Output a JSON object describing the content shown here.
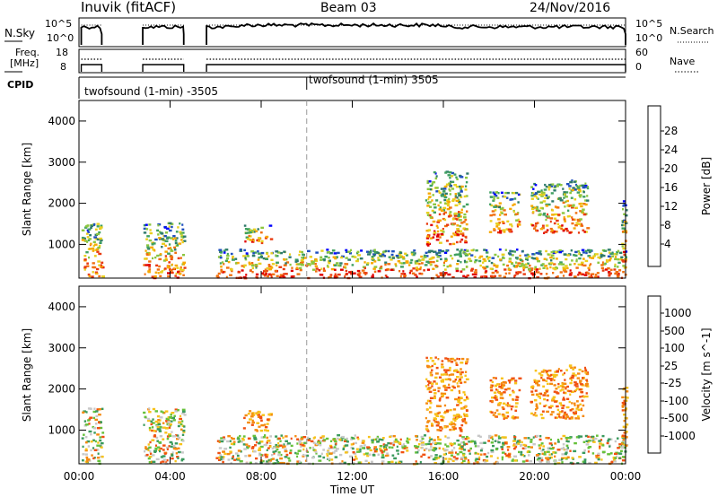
{
  "header": {
    "title": "Inuvik (fitACF)",
    "beam": "Beam 03",
    "date": "24/Nov/2016"
  },
  "top_panels": {
    "nsky_label": "N.Sky",
    "nsky_ticks": [
      "10^5",
      "10^0"
    ],
    "nsearch_label": "N.Search",
    "freq_label_line1": "Freq.",
    "freq_label_line2": "[MHz]",
    "freq_ticks": [
      "18",
      "8"
    ],
    "nave_label": "Nave",
    "nave_ticks": [
      "60",
      "0"
    ],
    "cpid_label": "CPID",
    "cpid_segments": [
      {
        "label": "twofsound (1-min) -3505",
        "start_hour": 0
      },
      {
        "label": "twofsound (1-min) 3505",
        "start_hour": 10
      }
    ]
  },
  "chart_data": [
    {
      "type": "heatmap",
      "name": "power",
      "ylabel": "Slant Range [km]",
      "xlabel": "Time UT",
      "x_ticks": [
        "00:00",
        "04:00",
        "08:00",
        "12:00",
        "16:00",
        "20:00",
        "00:00"
      ],
      "x_range_hours": [
        0,
        24
      ],
      "y_ticks": [
        1000,
        2000,
        3000,
        4000
      ],
      "ylim": [
        180,
        4500
      ],
      "colorbar": {
        "label": "Power [dB]",
        "ticks": [
          "4",
          "8",
          "12",
          "16",
          "20",
          "24",
          "28"
        ],
        "colors": [
          "#0000ff",
          "#1f4fbf",
          "#2e7a6a",
          "#3fa060",
          "#8cc63f",
          "#e8d020",
          "#f7a800",
          "#f07010",
          "#e83a10",
          "#e00000"
        ]
      },
      "echo_regions": [
        {
          "t0": 0.1,
          "t1": 1.0,
          "r0": 200,
          "r1": 1550
        },
        {
          "t0": 2.8,
          "t1": 4.6,
          "r0": 200,
          "r1": 1550
        },
        {
          "t0": 6.0,
          "t1": 24.0,
          "r0": 200,
          "r1": 900
        },
        {
          "t0": 7.2,
          "t1": 8.4,
          "r0": 1000,
          "r1": 1500
        },
        {
          "t0": 15.2,
          "t1": 17.0,
          "r0": 1000,
          "r1": 2800
        },
        {
          "t0": 18.0,
          "t1": 19.3,
          "r0": 1300,
          "r1": 2300
        },
        {
          "t0": 19.8,
          "t1": 21.0,
          "r0": 1300,
          "r1": 2500
        },
        {
          "t0": 21.0,
          "t1": 22.3,
          "r0": 1300,
          "r1": 2600
        },
        {
          "t0": 23.8,
          "t1": 24.0,
          "r0": 600,
          "r1": 2100
        }
      ]
    },
    {
      "type": "heatmap",
      "name": "velocity",
      "ylabel": "Slant Range [km]",
      "xlabel": "Time UT",
      "x_ticks": [
        "00:00",
        "04:00",
        "08:00",
        "12:00",
        "16:00",
        "20:00",
        "00:00"
      ],
      "x_range_hours": [
        0,
        24
      ],
      "y_ticks": [
        1000,
        2000,
        3000,
        4000
      ],
      "ylim": [
        180,
        4500
      ],
      "colorbar": {
        "label": "Velocity [m s^-1]",
        "ticks": [
          "1000",
          "500",
          "100",
          "25",
          "-25",
          "-100",
          "-500",
          "-1000"
        ],
        "colors": [
          "#1a3aa8",
          "#2f6fb0",
          "#3a9a5c",
          "#66c13a",
          "#c8c8c8",
          "#f7c21a",
          "#f58a10",
          "#f05010",
          "#e00000"
        ]
      }
    }
  ]
}
